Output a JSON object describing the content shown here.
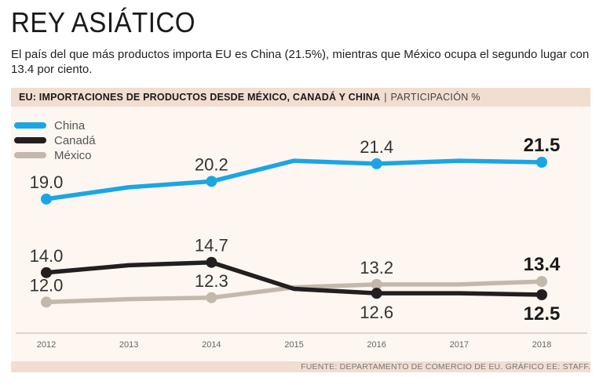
{
  "header": {
    "title": "REY ASIÁTICO",
    "subtitle": "El país del que más productos importa EU es China (21.5%), mientras que México ocupa el segundo lugar con 13.4 por ciento."
  },
  "chart_header": {
    "main": "EU: IMPORTACIONES DE PRODUCTOS DESDE MÉXICO, CANADÁ Y CHINA",
    "separator": "|",
    "unit": "PARTICIPACIÓN %"
  },
  "footer": {
    "source": "FUENTE: DEPARTAMENTO DE COMERCIO DE EU. GRÁFICO EE: STAFF."
  },
  "chart_data": {
    "type": "line",
    "title": "EU: IMPORTACIONES DE PRODUCTOS DESDE MÉXICO, CANADÁ Y CHINA",
    "ylabel": "PARTICIPACIÓN %",
    "xlabel": "",
    "x": [
      2012,
      2013,
      2014,
      2015,
      2016,
      2017,
      2018
    ],
    "ylim": [
      10,
      23
    ],
    "grid": false,
    "legend": "top-left",
    "series": [
      {
        "name": "China",
        "color": "#1aa6e4",
        "values": [
          19.0,
          19.8,
          20.2,
          21.6,
          21.4,
          21.6,
          21.5
        ],
        "labeled": [
          {
            "index": 0,
            "text": "19.0",
            "pos": "above",
            "bold": false
          },
          {
            "index": 2,
            "text": "20.2",
            "pos": "above",
            "bold": false
          },
          {
            "index": 4,
            "text": "21.4",
            "pos": "above",
            "bold": false
          },
          {
            "index": 6,
            "text": "21.5",
            "pos": "above",
            "bold": true
          }
        ]
      },
      {
        "name": "Canadá",
        "color": "#231f20",
        "values": [
          14.0,
          14.5,
          14.7,
          12.9,
          12.6,
          12.6,
          12.5
        ],
        "labeled": [
          {
            "index": 0,
            "text": "14.0",
            "pos": "above",
            "bold": false
          },
          {
            "index": 2,
            "text": "14.7",
            "pos": "above",
            "bold": false
          },
          {
            "index": 4,
            "text": "12.6",
            "pos": "below",
            "bold": false
          },
          {
            "index": 6,
            "text": "12.5",
            "pos": "below",
            "bold": true
          }
        ]
      },
      {
        "name": "México",
        "color": "#c4b8ad",
        "values": [
          12.0,
          12.2,
          12.3,
          13.0,
          13.2,
          13.2,
          13.4
        ],
        "labeled": [
          {
            "index": 0,
            "text": "12.0",
            "pos": "above",
            "bold": false
          },
          {
            "index": 2,
            "text": "12.3",
            "pos": "above",
            "bold": false
          },
          {
            "index": 4,
            "text": "13.2",
            "pos": "above",
            "bold": false
          },
          {
            "index": 6,
            "text": "13.4",
            "pos": "above",
            "bold": true
          }
        ]
      }
    ],
    "draw_order": [
      "México",
      "Canadá",
      "China"
    ],
    "marker_indices": [
      0,
      2,
      4,
      6
    ]
  }
}
